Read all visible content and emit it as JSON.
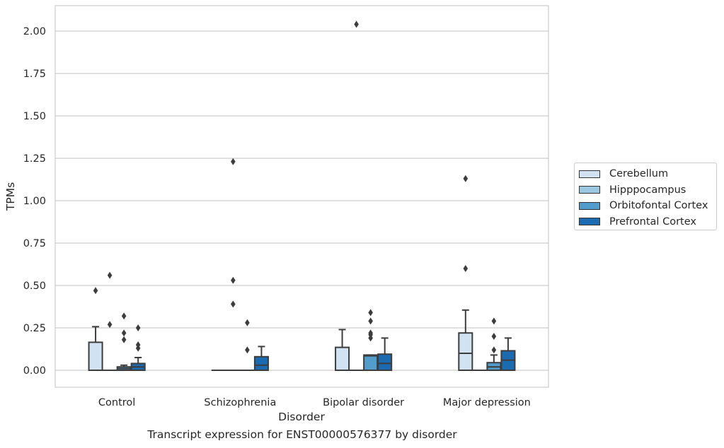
{
  "chart_data": {
    "type": "box",
    "title": "",
    "xlabel": "Disorder",
    "ylabel": "TPMs",
    "ylim": [
      -0.1,
      2.15
    ],
    "yticks": [
      0.0,
      0.25,
      0.5,
      0.75,
      1.0,
      1.25,
      1.5,
      1.75,
      2.0
    ],
    "ytick_labels": [
      "0.00",
      "0.25",
      "0.50",
      "0.75",
      "1.00",
      "1.25",
      "1.50",
      "1.75",
      "2.00"
    ],
    "grid": "horizontal",
    "legend_placement": "outside-right",
    "categories": [
      "Control",
      "Schizophrenia",
      "Bipolar disorder",
      "Major depression"
    ],
    "series": [
      {
        "name": "Cerebellum",
        "color": "#d1e2f2",
        "boxes": [
          {
            "q1": 0,
            "median": 0,
            "q3": 0.165,
            "whisker_low": 0,
            "whisker_high": 0.257,
            "outliers": [
              0.47
            ]
          },
          {
            "q1": 0,
            "median": 0,
            "q3": 0,
            "whisker_low": 0,
            "whisker_high": 0,
            "outliers": []
          },
          {
            "q1": 0,
            "median": 0,
            "q3": 0.135,
            "whisker_low": 0,
            "whisker_high": 0.24,
            "outliers": []
          },
          {
            "q1": 0,
            "median": 0.1,
            "q3": 0.22,
            "whisker_low": 0,
            "whisker_high": 0.355,
            "outliers": [
              0.6,
              1.13
            ]
          }
        ]
      },
      {
        "name": "Hipppocampus",
        "color": "#9ac8e0",
        "boxes": [
          {
            "q1": 0,
            "median": 0,
            "q3": 0,
            "whisker_low": 0,
            "whisker_high": 0,
            "outliers": [
              0.27,
              0.56
            ]
          },
          {
            "q1": 0,
            "median": 0,
            "q3": 0,
            "whisker_low": 0,
            "whisker_high": 0,
            "outliers": [
              0.39,
              0.53,
              1.23
            ]
          },
          {
            "q1": 0,
            "median": 0,
            "q3": 0,
            "whisker_low": 0,
            "whisker_high": 0,
            "outliers": [
              2.04
            ]
          },
          {
            "q1": 0,
            "median": 0,
            "q3": 0,
            "whisker_low": 0,
            "whisker_high": 0,
            "outliers": []
          }
        ]
      },
      {
        "name": "Orbitofontal Cortex",
        "color": "#529dcc",
        "boxes": [
          {
            "q1": 0,
            "median": 0.01,
            "q3": 0.02,
            "whisker_low": 0,
            "whisker_high": 0.03,
            "outliers": [
              0.18,
              0.22,
              0.32
            ]
          },
          {
            "q1": 0,
            "median": 0,
            "q3": 0,
            "whisker_low": 0,
            "whisker_high": 0,
            "outliers": [
              0.12,
              0.28
            ]
          },
          {
            "q1": 0,
            "median": 0.085,
            "q3": 0.09,
            "whisker_low": 0,
            "whisker_high": 0.09,
            "outliers": [
              0.19,
              0.21,
              0.22,
              0.29,
              0.34
            ]
          },
          {
            "q1": 0,
            "median": 0.02,
            "q3": 0.045,
            "whisker_low": 0,
            "whisker_high": 0.09,
            "outliers": [
              0.12,
              0.2,
              0.29
            ]
          }
        ]
      },
      {
        "name": "Prefrontal Cortex",
        "color": "#1c6aaf",
        "boxes": [
          {
            "q1": 0,
            "median": 0.02,
            "q3": 0.04,
            "whisker_low": 0,
            "whisker_high": 0.075,
            "outliers": [
              0.13,
              0.15,
              0.25
            ]
          },
          {
            "q1": 0,
            "median": 0.03,
            "q3": 0.08,
            "whisker_low": 0,
            "whisker_high": 0.14,
            "outliers": []
          },
          {
            "q1": 0,
            "median": 0.04,
            "q3": 0.095,
            "whisker_low": 0,
            "whisker_high": 0.19,
            "outliers": []
          },
          {
            "q1": 0,
            "median": 0.06,
            "q3": 0.115,
            "whisker_low": 0,
            "whisker_high": 0.19,
            "outliers": []
          }
        ]
      }
    ],
    "caption": "Transcript expression for ENST00000576377 by disorder"
  }
}
